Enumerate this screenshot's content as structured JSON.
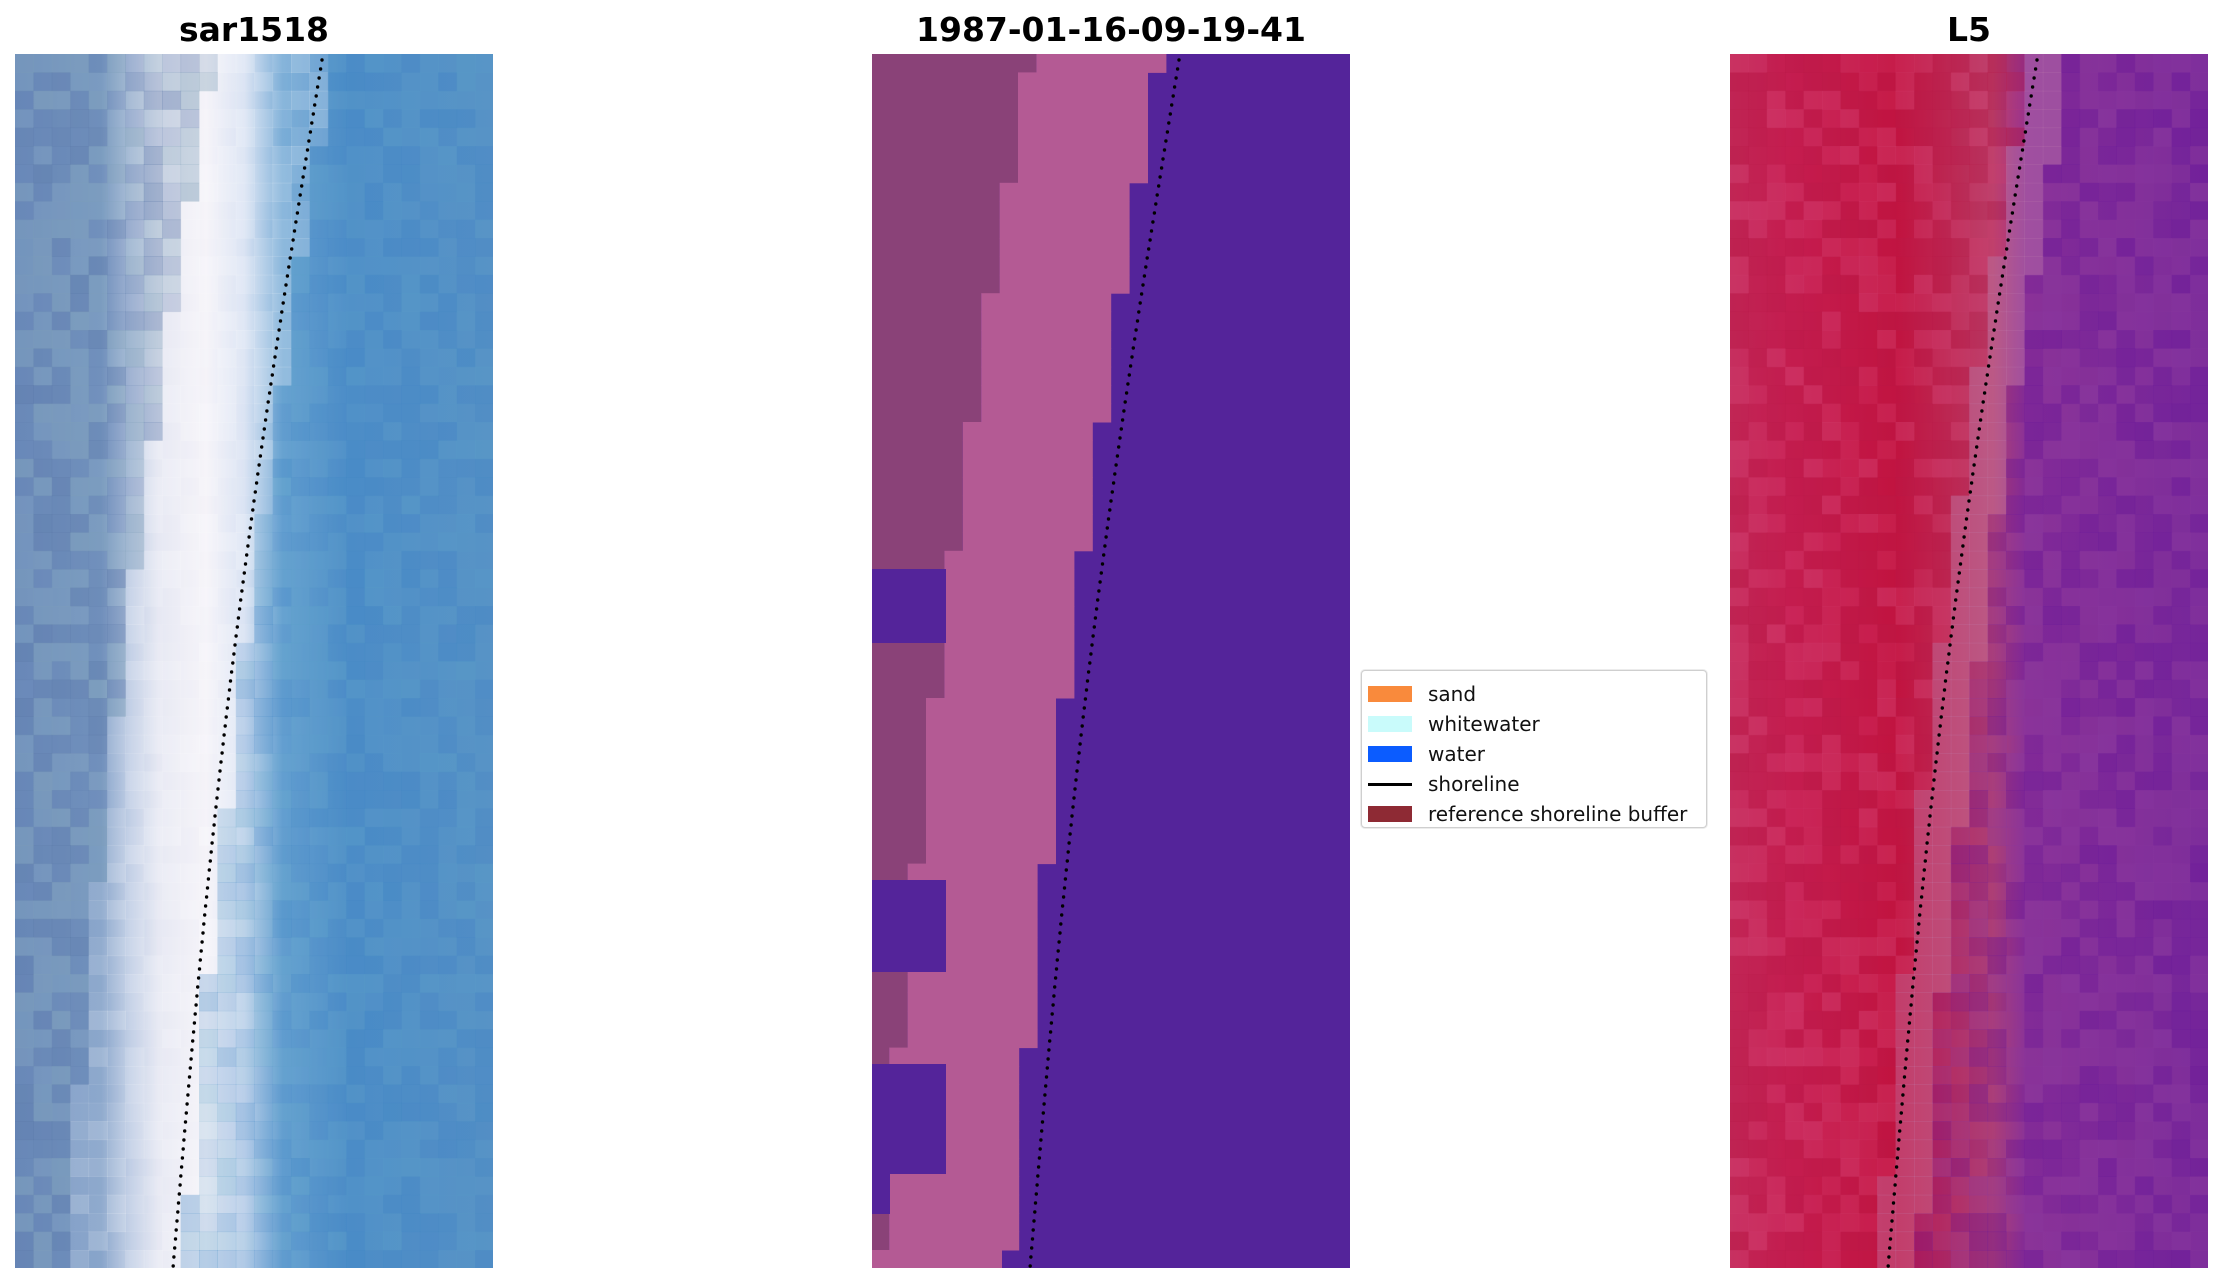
{
  "panels": [
    {
      "title": "sar1518"
    },
    {
      "title": "1987-01-16-09-19-41"
    },
    {
      "title": "L5"
    }
  ],
  "legend": {
    "items": [
      {
        "label": "sand",
        "color": "#f98a3c",
        "kind": "patch"
      },
      {
        "label": "whitewater",
        "color": "#c9fbfb",
        "kind": "patch"
      },
      {
        "label": "water",
        "color": "#0b5cff",
        "kind": "patch"
      },
      {
        "label": "shoreline",
        "color": "#000000",
        "kind": "line"
      },
      {
        "label": "reference shoreline buffer",
        "color": "#8e2a34",
        "kind": "patch"
      }
    ]
  },
  "colors": {
    "rgb_water": "#4f8ec8",
    "rgb_beach": "#f2eef6",
    "rgb_land": "#6f8fbf",
    "class_water": "#54249a",
    "class_land": "#8a4278",
    "class_beach": "#b45a94",
    "index_land": "#c8174a",
    "index_water": "#7a2a9a",
    "shoreline": "#000000"
  }
}
